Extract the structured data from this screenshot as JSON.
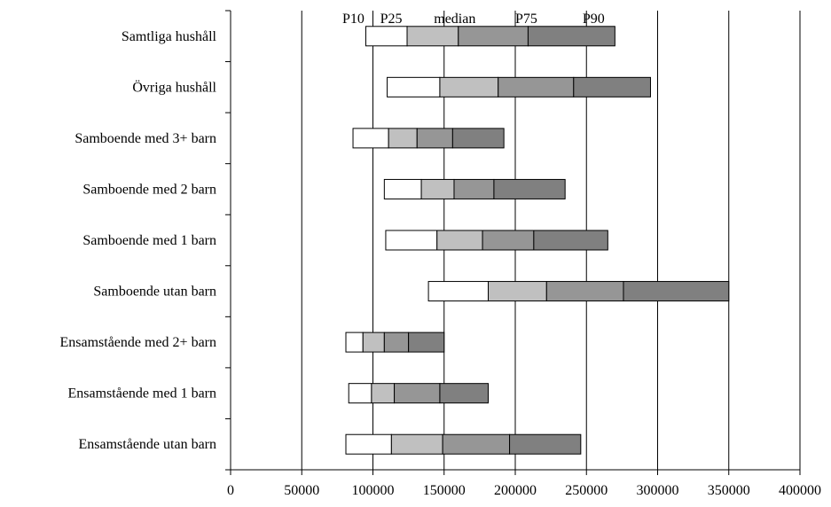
{
  "chart_data": {
    "type": "bar",
    "subtype": "stacked-horizontal-percentile",
    "xlim": [
      0,
      400000
    ],
    "x_ticks": [
      "0",
      "50000",
      "100000",
      "150000",
      "200000",
      "250000",
      "300000",
      "350000",
      "400000"
    ],
    "x_tick_values": [
      0,
      50000,
      100000,
      150000,
      200000,
      250000,
      300000,
      350000,
      400000
    ],
    "grid": "vertical",
    "percentile_labels": [
      "P10",
      "P25",
      "median",
      "P75",
      "P90"
    ],
    "segment_colors": [
      "#ffffff",
      "#c0c0c0",
      "#969696",
      "#808080"
    ],
    "categories": [
      {
        "label": "Samtliga hushåll",
        "values": [
          95000,
          124000,
          160000,
          209000,
          270000
        ]
      },
      {
        "label": "Övriga hushåll",
        "values": [
          110000,
          147000,
          188000,
          241000,
          295000
        ]
      },
      {
        "label": "Samboende med 3+ barn",
        "values": [
          86000,
          111000,
          131000,
          156000,
          192000
        ]
      },
      {
        "label": "Samboende med 2 barn",
        "values": [
          108000,
          134000,
          157000,
          185000,
          235000
        ]
      },
      {
        "label": "Samboende med 1 barn",
        "values": [
          109000,
          145000,
          177000,
          213000,
          265000
        ]
      },
      {
        "label": "Samboende utan barn",
        "values": [
          139000,
          181000,
          222000,
          276000,
          350000
        ]
      },
      {
        "label": "Ensamstående med 2+ barn",
        "values": [
          81000,
          93000,
          108000,
          125000,
          150000
        ]
      },
      {
        "label": "Ensamstående med 1 barn",
        "values": [
          83000,
          99000,
          115000,
          147000,
          181000
        ]
      },
      {
        "label": "Ensamstående utan barn",
        "values": [
          81000,
          113000,
          149000,
          196000,
          246000
        ]
      }
    ]
  }
}
